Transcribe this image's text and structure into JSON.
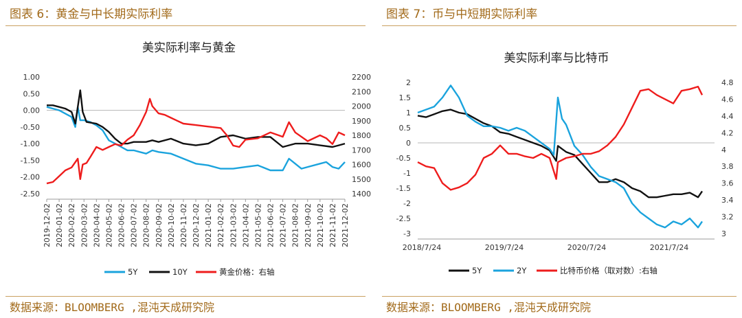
{
  "figures": [
    {
      "fig_title": "图表 6：黄金与中长期实际利率",
      "source": "数据来源：BLOOMBERG ,混沌天成研究院"
    },
    {
      "fig_title": "图表 7：币与中短期实际利率",
      "source": "数据来源：BLOOMBERG ,混沌天成研究院"
    }
  ],
  "chart_data": [
    {
      "type": "line",
      "title": "美实际利率与黄金",
      "y_left": {
        "ticks": [
          "1.00",
          "0.50",
          "0.00",
          "-0.50",
          "-1.00",
          "-1.50",
          "-2.00",
          "-2.50"
        ],
        "lim": [
          -2.5,
          1.0
        ]
      },
      "y_right": {
        "ticks": [
          "2200",
          "2100",
          "2000",
          "1900",
          "1800",
          "1700",
          "1600",
          "1500",
          "1400"
        ],
        "lim": [
          1400,
          2200
        ]
      },
      "x_ticks": [
        "2019-12-02",
        "2020-01-02",
        "2020-02-02",
        "2020-03-02",
        "2020-04-02",
        "2020-05-02",
        "2020-06-02",
        "2020-07-02",
        "2020-08-02",
        "2020-09-02",
        "2020-10-02",
        "2020-11-02",
        "2020-12-02",
        "2021-01-02",
        "2021-02-02",
        "2021-03-02",
        "2021-04-02",
        "2021-05-02",
        "2021-06-02",
        "2021-07-02",
        "2021-08-02",
        "2021-09-02",
        "2021-10-02",
        "2021-11-02",
        "2021-12-02"
      ],
      "x_range": [
        0,
        24
      ],
      "series": [
        {
          "name": "5Y",
          "color": "#1aa3dd",
          "axis": "left",
          "x": [
            0,
            0.5,
            1,
            1.5,
            2,
            2.3,
            2.5,
            2.7,
            3,
            3.5,
            4,
            4.5,
            5,
            5.5,
            6,
            6.5,
            7,
            7.5,
            8,
            8.5,
            9,
            10,
            11,
            12,
            13,
            14,
            15,
            16,
            17,
            18,
            19,
            19.5,
            20,
            20.5,
            21,
            22,
            22.5,
            23,
            23.5,
            24
          ],
          "y": [
            0.1,
            0.05,
            0.0,
            -0.1,
            -0.2,
            -0.5,
            0.1,
            -0.3,
            -0.3,
            -0.35,
            -0.45,
            -0.6,
            -0.9,
            -1.0,
            -1.1,
            -1.2,
            -1.2,
            -1.25,
            -1.3,
            -1.2,
            -1.25,
            -1.3,
            -1.45,
            -1.6,
            -1.65,
            -1.75,
            -1.75,
            -1.7,
            -1.65,
            -1.8,
            -1.8,
            -1.45,
            -1.6,
            -1.75,
            -1.7,
            -1.6,
            -1.55,
            -1.7,
            -1.75,
            -1.55
          ]
        },
        {
          "name": "10Y",
          "color": "#111111",
          "axis": "left",
          "x": [
            0,
            0.5,
            1,
            1.5,
            2,
            2.3,
            2.7,
            2.9,
            3.2,
            4,
            4.5,
            5,
            5.5,
            6,
            6.5,
            7,
            7.5,
            8,
            8.5,
            9,
            10,
            11,
            12,
            13,
            14,
            15,
            16,
            17,
            18,
            19,
            20,
            21,
            22,
            23,
            23.5,
            24
          ],
          "y": [
            0.15,
            0.15,
            0.1,
            0.05,
            -0.05,
            -0.4,
            0.6,
            -0.05,
            -0.35,
            -0.4,
            -0.5,
            -0.65,
            -0.85,
            -1.0,
            -1.0,
            -0.95,
            -0.95,
            -0.95,
            -0.9,
            -0.95,
            -0.85,
            -1.0,
            -1.05,
            -1.0,
            -0.8,
            -0.75,
            -0.85,
            -0.8,
            -0.8,
            -1.1,
            -1.0,
            -1.0,
            -1.05,
            -1.1,
            -1.05,
            -1.0
          ]
        },
        {
          "name": "黄金价格：右轴",
          "color": "#ee1c1c",
          "axis": "right",
          "x": [
            0,
            0.5,
            1,
            1.5,
            2,
            2.5,
            2.7,
            2.9,
            3.2,
            3.5,
            4,
            4.5,
            5,
            5.5,
            6,
            6.5,
            7,
            7.5,
            8,
            8.3,
            8.5,
            9,
            9.5,
            10,
            10.5,
            11,
            12,
            13,
            14,
            14.5,
            15,
            15.5,
            16,
            17,
            18,
            19,
            19.5,
            20,
            21,
            22,
            22.5,
            23,
            23.5,
            24
          ],
          "y": [
            1470,
            1480,
            1520,
            1560,
            1580,
            1640,
            1500,
            1600,
            1610,
            1650,
            1720,
            1700,
            1720,
            1740,
            1730,
            1770,
            1800,
            1870,
            1960,
            2050,
            2000,
            1950,
            1940,
            1920,
            1900,
            1880,
            1870,
            1860,
            1850,
            1800,
            1730,
            1720,
            1770,
            1780,
            1820,
            1790,
            1890,
            1820,
            1760,
            1800,
            1780,
            1740,
            1820,
            1800
          ]
        }
      ]
    },
    {
      "type": "line",
      "title": "美实际利率与比特币",
      "y_left": {
        "ticks": [
          "2",
          "1.5",
          "1",
          "0.5",
          "0",
          "-0.5",
          "-1",
          "-1.5",
          "-2",
          "-2.5",
          "-3"
        ],
        "lim": [
          -3,
          2
        ]
      },
      "y_right": {
        "ticks": [
          "4.8",
          "4.6",
          "4.4",
          "4.2",
          "4",
          "3.8",
          "3.6",
          "3.4",
          "3.2",
          "3"
        ],
        "lim": [
          3.0,
          4.8
        ]
      },
      "x_ticks": [
        "2018/7/24",
        "2019/7/24",
        "2020/7/24",
        "2021/7/24"
      ],
      "x_range": [
        0,
        3.6
      ],
      "series": [
        {
          "name": "5Y",
          "color": "#111111",
          "axis": "left",
          "x": [
            0,
            0.1,
            0.2,
            0.3,
            0.4,
            0.5,
            0.6,
            0.7,
            0.8,
            0.9,
            1.0,
            1.1,
            1.2,
            1.3,
            1.4,
            1.5,
            1.6,
            1.68,
            1.7,
            1.75,
            1.8,
            1.9,
            2.0,
            2.1,
            2.2,
            2.3,
            2.4,
            2.5,
            2.6,
            2.7,
            2.8,
            2.9,
            3.0,
            3.1,
            3.2,
            3.3,
            3.4,
            3.45
          ],
          "y": [
            0.9,
            0.85,
            0.95,
            1.05,
            1.1,
            1.0,
            0.95,
            0.8,
            0.65,
            0.55,
            0.35,
            0.3,
            0.2,
            0.1,
            0.0,
            -0.1,
            -0.25,
            -0.6,
            -0.1,
            -0.2,
            -0.3,
            -0.4,
            -0.7,
            -1.0,
            -1.3,
            -1.3,
            -1.2,
            -1.3,
            -1.5,
            -1.6,
            -1.8,
            -1.8,
            -1.75,
            -1.7,
            -1.7,
            -1.65,
            -1.8,
            -1.6
          ]
        },
        {
          "name": "2Y",
          "color": "#1aa3dd",
          "axis": "left",
          "x": [
            0,
            0.1,
            0.2,
            0.3,
            0.4,
            0.5,
            0.6,
            0.7,
            0.8,
            0.9,
            1.0,
            1.1,
            1.2,
            1.3,
            1.4,
            1.5,
            1.6,
            1.65,
            1.7,
            1.75,
            1.8,
            1.9,
            2.0,
            2.1,
            2.2,
            2.3,
            2.4,
            2.5,
            2.6,
            2.7,
            2.8,
            2.9,
            3.0,
            3.1,
            3.2,
            3.3,
            3.4,
            3.45
          ],
          "y": [
            1.0,
            1.1,
            1.2,
            1.5,
            1.9,
            1.5,
            0.9,
            0.7,
            0.55,
            0.55,
            0.5,
            0.4,
            0.5,
            0.4,
            0.2,
            0.0,
            -0.2,
            -0.4,
            1.5,
            0.8,
            0.6,
            -0.1,
            -0.4,
            -0.8,
            -1.1,
            -1.2,
            -1.3,
            -1.5,
            -2.0,
            -2.3,
            -2.5,
            -2.7,
            -2.8,
            -2.6,
            -2.7,
            -2.5,
            -2.8,
            -2.6
          ]
        },
        {
          "name": "比特币价格（取对数）:右轴",
          "color": "#ee1c1c",
          "axis": "right",
          "x": [
            0,
            0.1,
            0.2,
            0.3,
            0.4,
            0.5,
            0.6,
            0.7,
            0.8,
            0.9,
            1.0,
            1.1,
            1.2,
            1.3,
            1.4,
            1.5,
            1.6,
            1.68,
            1.7,
            1.8,
            1.9,
            2.0,
            2.1,
            2.2,
            2.3,
            2.4,
            2.5,
            2.6,
            2.7,
            2.8,
            2.9,
            3.0,
            3.1,
            3.2,
            3.3,
            3.4,
            3.45
          ],
          "y": [
            3.85,
            3.8,
            3.78,
            3.6,
            3.52,
            3.55,
            3.6,
            3.7,
            3.9,
            3.95,
            4.05,
            3.95,
            3.95,
            3.92,
            3.9,
            3.95,
            3.9,
            3.65,
            3.85,
            3.9,
            3.92,
            3.95,
            3.95,
            3.98,
            4.05,
            4.15,
            4.3,
            4.5,
            4.7,
            4.72,
            4.65,
            4.6,
            4.55,
            4.7,
            4.72,
            4.75,
            4.65
          ]
        }
      ]
    }
  ]
}
